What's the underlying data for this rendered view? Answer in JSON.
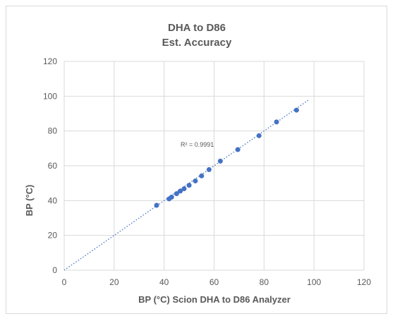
{
  "chart_data": {
    "type": "scatter",
    "title": "DHA to D86",
    "subtitle": "Est. Accuracy",
    "xlabel": "BP (°C) Scion DHA to D86 Analyzer",
    "ylabel": "BP (°C)",
    "xlim": [
      0,
      120
    ],
    "ylim": [
      0,
      120
    ],
    "xticks": [
      0,
      20,
      40,
      60,
      80,
      100,
      120
    ],
    "yticks": [
      0,
      20,
      40,
      60,
      80,
      100,
      120
    ],
    "grid": true,
    "annotation": "R² = 0.9991",
    "trendline": {
      "type": "linear",
      "x": [
        0,
        98
      ],
      "y": [
        0,
        98
      ],
      "style": "dotted"
    },
    "series": [
      {
        "x": [
          37,
          42,
          43,
          45,
          46.5,
          48,
          50,
          52.5,
          55,
          58,
          62.5,
          69.5,
          78,
          85,
          93
        ],
        "y": [
          37.3,
          41,
          42,
          44,
          45.5,
          46.8,
          48.8,
          51.3,
          54.2,
          57.8,
          62.7,
          69.3,
          77.3,
          85.2,
          92
        ]
      }
    ],
    "colors": {
      "marker": "#4472c4",
      "trendline": "#4472c4",
      "grid": "#d9d9d9",
      "text": "#595959"
    }
  }
}
